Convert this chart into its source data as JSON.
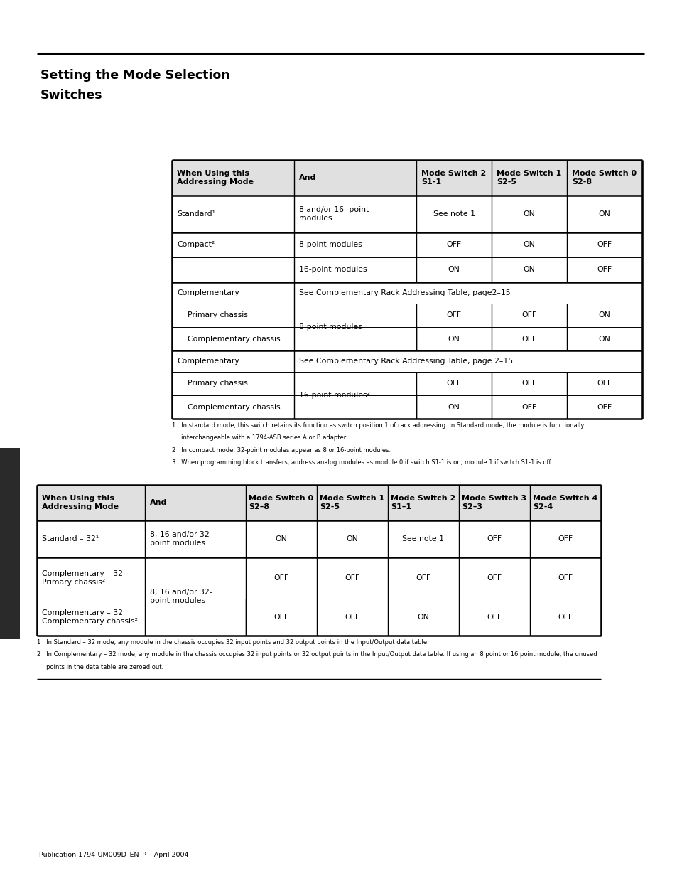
{
  "title_line1": "Setting the Mode Selection",
  "title_line2": "Switches",
  "footer": "Publication 1794-UM009D–EN–P – April 2004",
  "header_bg": "#e0e0e0",
  "table1_col_headers": [
    "When Using this\nAddressing Mode",
    "And",
    "Mode Switch 2\nS1-1",
    "Mode Switch 1\nS2-5",
    "Mode Switch 0\nS2-8"
  ],
  "table1_footnotes": [
    "1   In standard mode, this switch retains its function as switch position 1 of rack addressing. In Standard mode, the module is functionally",
    "     interchangeable with a 1794-ASB series A or B adapter.",
    "2   In compact mode, 32-point modules appear as 8 or 16-point modules.",
    "3   When programming block transfers, address analog modules as module 0 if switch S1-1 is on; module 1 if switch S1-1 is off."
  ],
  "table2_col_headers": [
    "When Using this\nAddressing Mode",
    "And",
    "Mode Switch 0\nS2–8",
    "Mode Switch 1\nS2-5",
    "Mode Switch 2\nS1–1",
    "Mode Switch 3\nS2–3",
    "Mode Switch 4\nS2-4"
  ],
  "table2_footnotes": [
    "1   In Standard – 32 mode, any module in the chassis occupies 32 input points and 32 output points in the Input/Output data table.",
    "2   In Complementary – 32 mode, any module in the chassis occupies 32 input points or 32 output points in the Input/Output data table. If using an 8 point or 16 point module, the unused",
    "     points in the data table are zeroed out."
  ]
}
